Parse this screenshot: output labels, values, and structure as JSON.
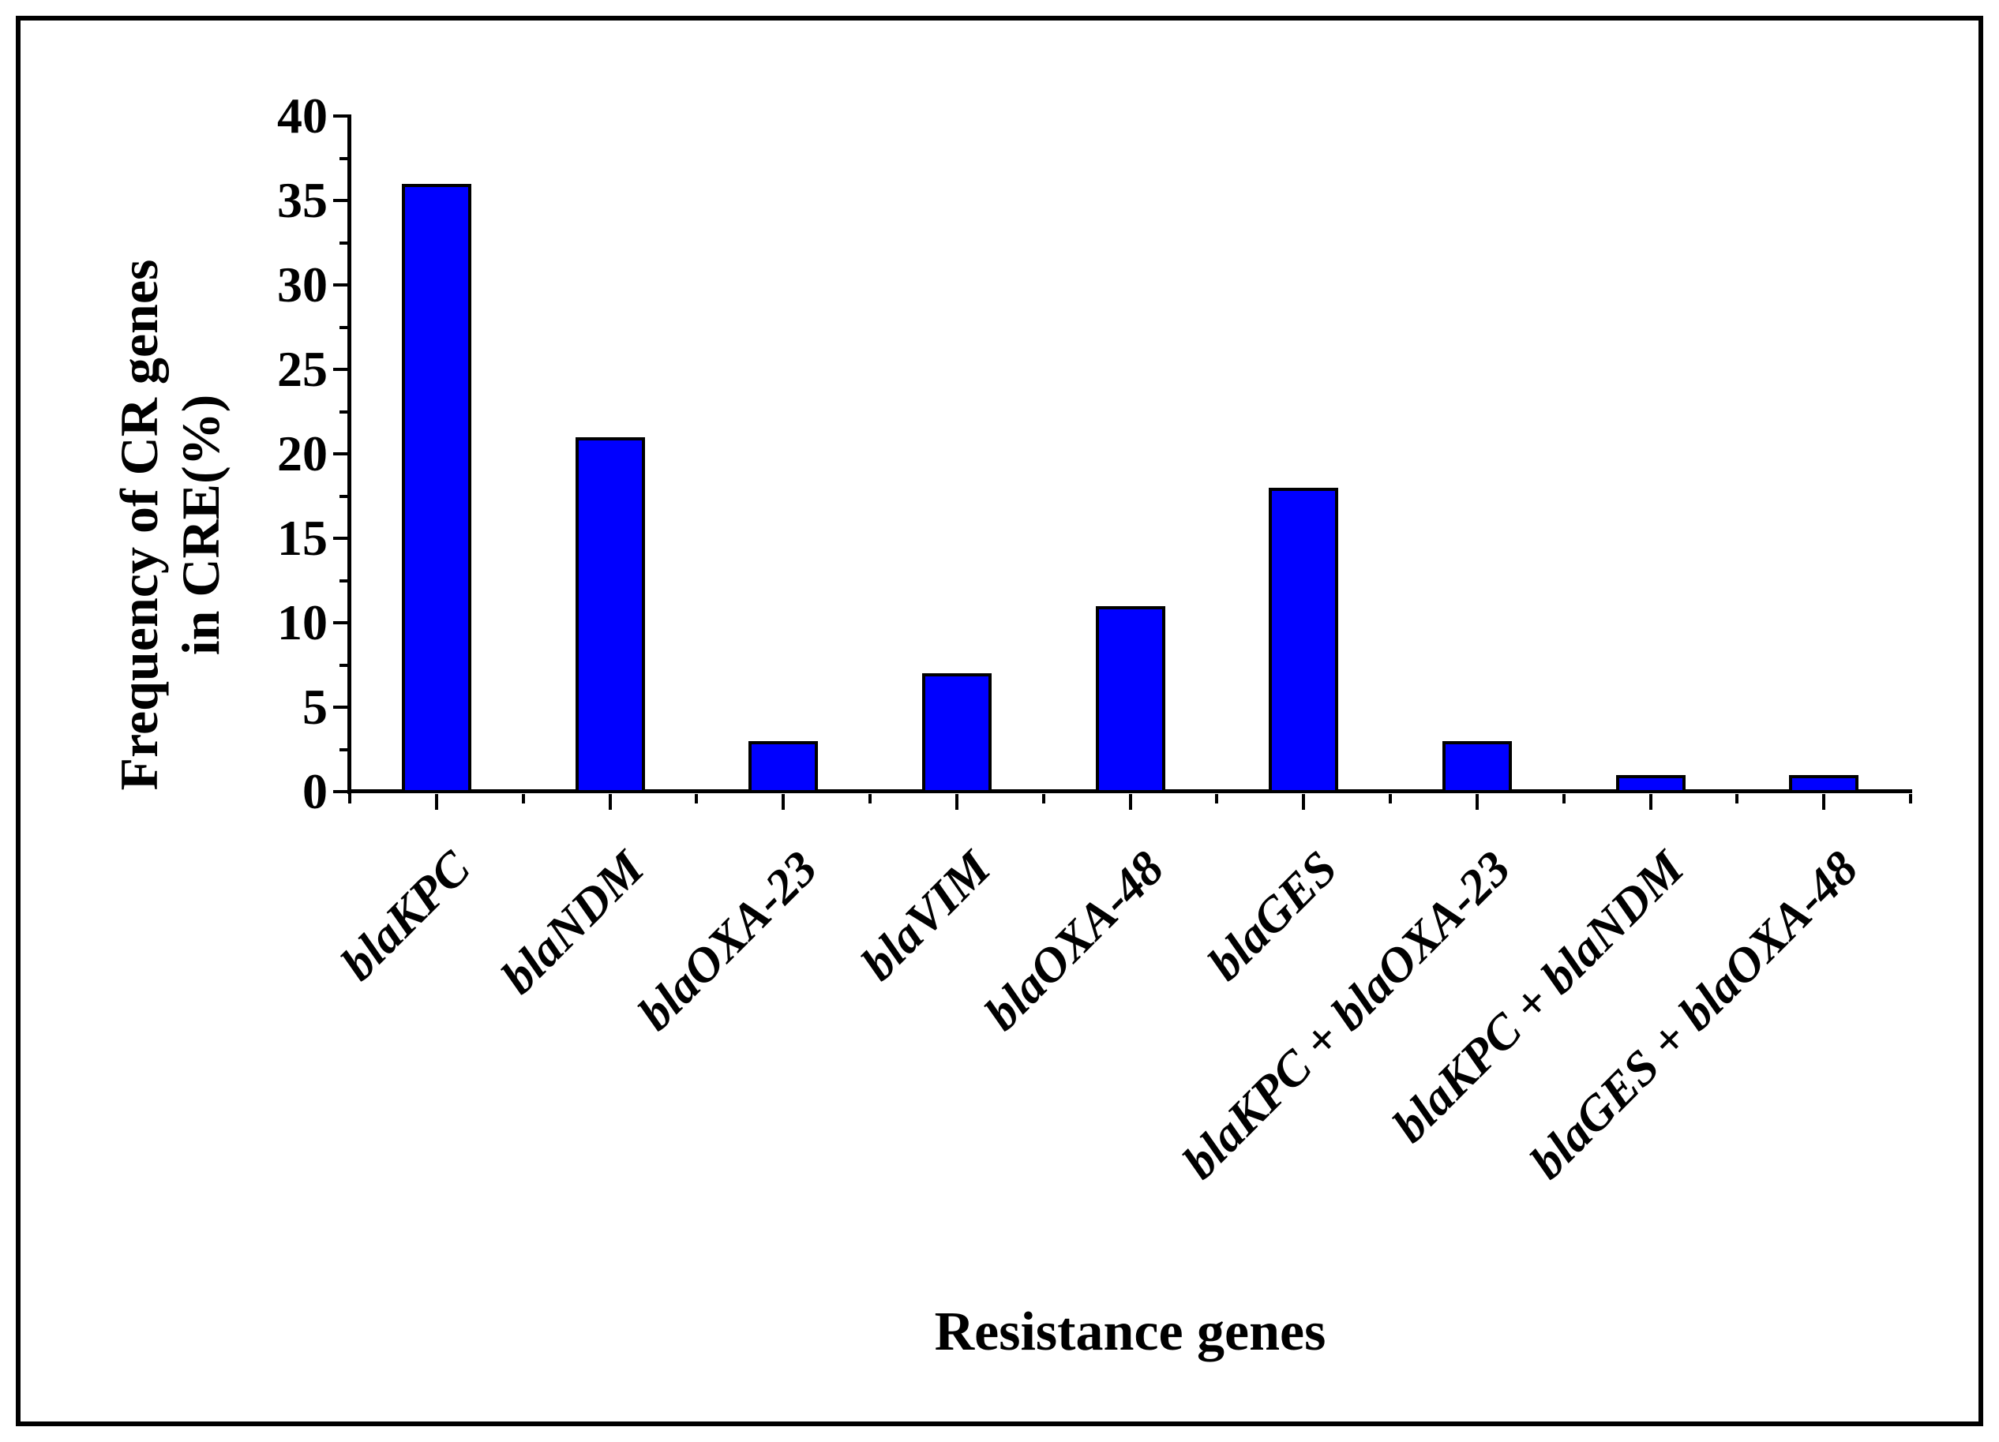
{
  "figure": {
    "background_color": "#ffffff",
    "border_color": "#000000"
  },
  "chart_data": {
    "type": "bar",
    "title": "",
    "categories": [
      "blaKPC",
      "blaNDM",
      "blaOXA-23",
      "blaVIM",
      "blaOXA-48",
      "blaGES",
      "blaKPC + blaOXA-23",
      "blaKPC + blaNDM",
      "blaGES + blaOXA-48"
    ],
    "values": [
      36,
      21,
      3,
      7,
      11,
      18,
      3,
      1,
      1
    ],
    "xlabel": "Resistance genes",
    "ylabel_lines": [
      "Frequency of CR genes",
      "in CRE(%)"
    ],
    "ylim": [
      0,
      40
    ],
    "ytick_step": 5,
    "ytick_minor_step": 2.5,
    "ytick_labels": [
      "0",
      "5",
      "10",
      "15",
      "20",
      "25",
      "30",
      "35",
      "40"
    ],
    "bar_color": "#0000ff",
    "bar_border_color": "#000000",
    "axis_color": "#000000",
    "grid": false,
    "legend": null,
    "x_tick_label_rotation_deg": 45,
    "bar_width_frac": 0.4
  }
}
